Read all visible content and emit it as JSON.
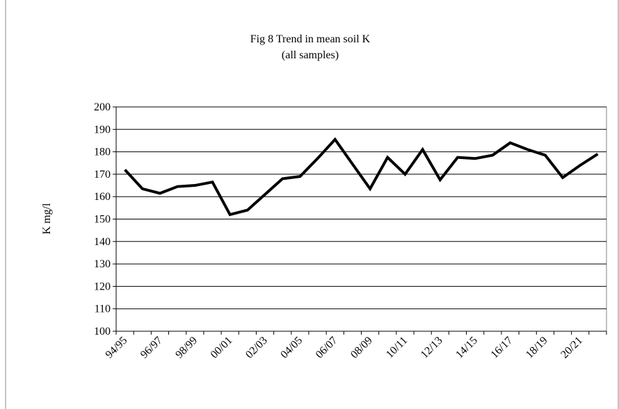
{
  "chart_data": {
    "type": "line",
    "title": "Fig 8 Trend in mean soil K",
    "subtitle": "(all samples)",
    "y_label": "K mg/l",
    "categories": [
      "94/95",
      null,
      "96/97",
      null,
      "98/99",
      null,
      "00/01",
      null,
      "02/03",
      null,
      "04/05",
      null,
      "06/07",
      null,
      "08/09",
      null,
      "10/11",
      null,
      "12/13",
      null,
      "14/15",
      null,
      "16/17",
      null,
      "18/19",
      null,
      "20/21",
      null
    ],
    "series": [
      {
        "name": "K",
        "color": "#000000",
        "values": [
          172,
          163.5,
          161.5,
          164.5,
          165,
          166.5,
          152,
          154,
          161,
          168,
          169,
          177,
          185.5,
          174.5,
          163.5,
          177.5,
          170,
          181,
          167.5,
          177.5,
          177,
          178.5,
          184,
          181,
          178.5,
          168.5,
          174,
          179
        ]
      }
    ],
    "ylim": [
      100,
      200
    ],
    "yticks": [
      100,
      110,
      120,
      130,
      140,
      150,
      160,
      170,
      180,
      190,
      200
    ],
    "grid": true
  }
}
